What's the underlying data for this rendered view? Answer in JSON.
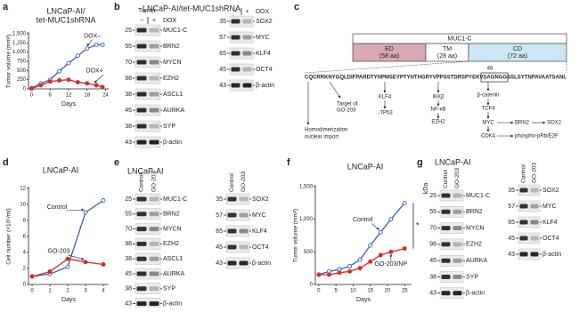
{
  "panel_labels": [
    "a",
    "b",
    "c",
    "d",
    "e",
    "f",
    "g"
  ],
  "chart_data": [
    {
      "type": "line",
      "title": "LNCaP-AI/",
      "subtitle": "tet-MUC1shRNA",
      "xlabel": "Days",
      "ylabel": "Tumor volume (mm³)",
      "x": [
        0,
        3,
        6,
        9,
        12,
        15,
        18,
        21,
        23
      ],
      "xlim": [
        -1,
        25
      ],
      "xticks": [
        0,
        6,
        12,
        18,
        24
      ],
      "ylim": [
        0,
        1500
      ],
      "yticks": [
        0,
        250,
        500,
        750,
        {
          "value": 1000,
          "label": "1,000"
        },
        {
          "value": 1250,
          "label": "1,250"
        },
        {
          "value": 1500,
          "label": "1,500"
        }
      ],
      "series": [
        {
          "name": "DOX−",
          "color": "#3a5fa8",
          "marker": "open",
          "values": [
            20,
            150,
            250,
            480,
            700,
            900,
            1100,
            1200,
            1200
          ]
        },
        {
          "name": "DOX+",
          "color": "#d62a2a",
          "marker": "filled",
          "values": [
            10,
            100,
            200,
            230,
            250,
            180,
            150,
            100,
            50
          ]
        }
      ]
    },
    {
      "type": "line",
      "title": "LNCaP-AI",
      "xlabel": "Days",
      "ylabel": "Cell number (×10⁵/ml)",
      "x": [
        0,
        1,
        2,
        3,
        4
      ],
      "xlim": [
        -0.2,
        4.3
      ],
      "xticks": [
        0,
        1,
        2,
        3,
        4
      ],
      "ylim": [
        0,
        12
      ],
      "yticks": [
        0,
        2,
        4,
        6,
        8,
        10,
        12
      ],
      "series": [
        {
          "name": "Control",
          "color": "#3a5fa8",
          "marker": "open",
          "values": [
            1,
            1.3,
            2.2,
            9,
            10.5
          ]
        },
        {
          "name": "GO-203",
          "color": "#d62a2a",
          "marker": "filled",
          "values": [
            1,
            1.6,
            3.2,
            2.8,
            2.5
          ]
        }
      ]
    },
    {
      "type": "line",
      "title": "LNCaP-AI",
      "xlabel": "Days",
      "ylabel": "Tumor volume (mm³)",
      "annotation": "*",
      "x": [
        0,
        3,
        6,
        9,
        12,
        15,
        18,
        21,
        25
      ],
      "xlim": [
        -1,
        27
      ],
      "xticks": [
        0,
        5,
        10,
        15,
        20,
        25
      ],
      "ylim": [
        0,
        1500
      ],
      "yticks": [
        0,
        500,
        {
          "value": 1000,
          "label": "1,000"
        },
        {
          "value": 1500,
          "label": "1,500"
        }
      ],
      "series": [
        {
          "name": "Control",
          "color": "#3a5fa8",
          "marker": "open",
          "values": [
            150,
            200,
            230,
            280,
            380,
            600,
            800,
            1000,
            1250
          ]
        },
        {
          "name": "GO-203/NP",
          "color": "#d62a2a",
          "marker": "filled",
          "values": [
            150,
            150,
            180,
            200,
            250,
            350,
            450,
            500,
            550
          ]
        }
      ]
    }
  ],
  "blots": [
    {
      "title": "LNCaP-AI/tet-MUC1shRNA",
      "source": "Tumor",
      "groups": [
        {
          "lanes": [
            "−",
            "+"
          ],
          "caption": "DOX",
          "rows": [
            {
              "kda": 25,
              "protein": "MUC1-C"
            },
            {
              "kda": 55,
              "protein": "BRN2"
            },
            {
              "kda": 70,
              "protein": "MYCN"
            },
            {
              "kda": 98,
              "protein": "EZH2"
            },
            {
              "kda": 38,
              "protein": "ASCL1"
            },
            {
              "kda": 45,
              "protein": "AURKA"
            },
            {
              "kda": 38,
              "protein": "SYP"
            },
            {
              "kda": 43,
              "protein": "β-actin"
            }
          ]
        },
        {
          "lanes": [
            "−",
            "+"
          ],
          "caption": "DOX",
          "rows": [
            {
              "kda": 35,
              "protein": "SOX2"
            },
            {
              "kda": 57,
              "protein": "MYC"
            },
            {
              "kda": 65,
              "protein": "KLF4"
            },
            {
              "kda": 45,
              "protein": "OCT4"
            },
            {
              "kda": 43,
              "protein": "β-actin"
            }
          ]
        }
      ]
    },
    {
      "title": "LNCaP-AI",
      "groups": [
        {
          "lanes": [
            "Control",
            "GO-203"
          ],
          "rows": [
            {
              "kda": 25,
              "protein": "MUC1-C"
            },
            {
              "kda": 55,
              "protein": "BRN2"
            },
            {
              "kda": 70,
              "protein": "MYCN"
            },
            {
              "kda": 98,
              "protein": "EZH2"
            },
            {
              "kda": 38,
              "protein": "ASCL1"
            },
            {
              "kda": 45,
              "protein": "AURKA"
            },
            {
              "kda": 38,
              "protein": "SYP"
            },
            {
              "kda": 43,
              "protein": "β-actin"
            }
          ]
        },
        {
          "lanes": [
            "Control",
            "GO-203"
          ],
          "rows": [
            {
              "kda": 35,
              "protein": "SOX2"
            },
            {
              "kda": 57,
              "protein": "MYC"
            },
            {
              "kda": 65,
              "protein": "KLF4"
            },
            {
              "kda": 45,
              "protein": "OCT4"
            },
            {
              "kda": 43,
              "protein": "β-actin"
            }
          ]
        }
      ]
    },
    {
      "title": "LNCaP-AI",
      "unit": "kDa",
      "groups": [
        {
          "lanes": [
            "Control",
            "GO-203"
          ],
          "rows": [
            {
              "kda": 25,
              "protein": "MUC1-C"
            },
            {
              "kda": 55,
              "protein": "BRN2"
            },
            {
              "kda": 70,
              "protein": "MYCN"
            },
            {
              "kda": 98,
              "protein": "EZH2"
            },
            {
              "kda": 45,
              "protein": "AURKA"
            },
            {
              "kda": 38,
              "protein": "SYP"
            },
            {
              "kda": 43,
              "protein": "β-actin"
            }
          ]
        },
        {
          "lanes": [
            "Control",
            "GO-203"
          ],
          "rows": [
            {
              "kda": 35,
              "protein": "SOX2"
            },
            {
              "kda": 57,
              "protein": "MYC"
            },
            {
              "kda": 65,
              "protein": "KLF4"
            },
            {
              "kda": 45,
              "protein": "OCT4"
            },
            {
              "kda": 43,
              "protein": "β-actin"
            }
          ]
        }
      ]
    }
  ],
  "diagram": {
    "protein": "MUC1-C",
    "domains": [
      {
        "name": "ED",
        "size": "(58 aa)"
      },
      {
        "name": "TM",
        "size": "(28 aa)"
      },
      {
        "name": "CD",
        "size": "(72 aa)"
      }
    ],
    "sequence": "CQCRRKNYGQLDIFPARDTYHPMSEYPTYHTHGRYVPPSSTDRSPYEKVSAGNGGSSLSYTNPAVAATSANL",
    "position": "46",
    "notes": [
      "Homodimerization",
      "nuclear import",
      "Target of",
      "GO-203",
      "KLF4",
      "↓TP53",
      "IKKβ",
      "NF-κB",
      "EZH2",
      "β-catenin",
      "TCF4",
      "MYC",
      "BRN2",
      "SOX2",
      "CDK4",
      "phospho-pRb/E2F"
    ]
  }
}
